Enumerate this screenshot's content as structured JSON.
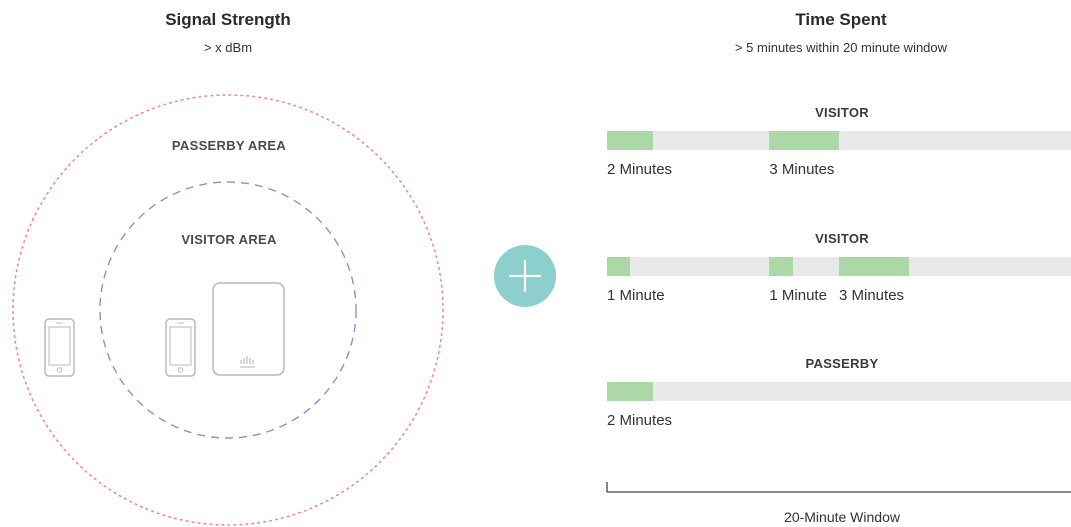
{
  "signal": {
    "title": "Signal Strength",
    "subtitle": "> x dBm",
    "passerby_area_label": "PASSERBY AREA",
    "visitor_area_label": "VISITOR AREA"
  },
  "time": {
    "title": "Time Spent",
    "subtitle": "> 5 minutes within 20 minute window",
    "window_label": "20-Minute Window",
    "window_minutes": 20,
    "rows": [
      {
        "title": "VISITOR",
        "segments": [
          {
            "start": 0,
            "minutes": 2,
            "label": "2 Minutes"
          },
          {
            "start": 7,
            "minutes": 3,
            "label": "3 Minutes"
          }
        ]
      },
      {
        "title": "VISITOR",
        "segments": [
          {
            "start": 0,
            "minutes": 1,
            "label": "1 Minute"
          },
          {
            "start": 7,
            "minutes": 1,
            "label": "1 Minute"
          },
          {
            "start": 10,
            "minutes": 3,
            "label": "3 Minutes"
          }
        ]
      },
      {
        "title": "PASSERBY",
        "segments": [
          {
            "start": 0,
            "minutes": 2,
            "label": "2 Minutes"
          }
        ]
      }
    ]
  },
  "colors": {
    "passerby_ring": "#f08a80",
    "visitor_ring": "#8c91cc",
    "plus_circle": "#8ccfcc",
    "segment": "#acd8a8",
    "track": "#e8e9ea",
    "device": "#b8b8b8"
  },
  "icons": {
    "plus": "plus-icon",
    "phone": "smartphone-icon",
    "access_point": "access-point-icon"
  }
}
